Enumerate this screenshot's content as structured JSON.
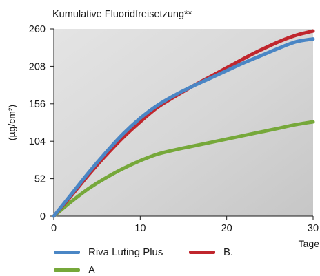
{
  "chart_data": {
    "type": "line",
    "title": "Kumulative Fluoridfreisetzung**",
    "xlabel": "Tage",
    "ylabel": "(µg/cm²)",
    "xlim": [
      0,
      30
    ],
    "ylim": [
      0,
      260
    ],
    "x_ticks": [
      0,
      10,
      20,
      30
    ],
    "y_ticks": [
      0,
      52,
      104,
      156,
      208,
      260
    ],
    "grid": false,
    "legend_position": "bottom",
    "series": [
      {
        "name": "Riva Luting Plus",
        "color": "#4a86c5",
        "x": [
          0,
          2,
          4,
          6,
          8,
          10,
          12,
          14,
          16,
          18,
          20,
          22,
          24,
          26,
          28,
          30
        ],
        "values": [
          0,
          30,
          60,
          88,
          114,
          136,
          154,
          168,
          180,
          191,
          202,
          213,
          223,
          233,
          242,
          246
        ]
      },
      {
        "name": "B.",
        "color": "#c0262d",
        "x": [
          0,
          2,
          4,
          6,
          8,
          10,
          12,
          14,
          16,
          18,
          20,
          22,
          24,
          26,
          28,
          30
        ],
        "values": [
          0,
          28,
          57,
          84,
          109,
          131,
          151,
          166,
          180,
          193,
          206,
          219,
          231,
          242,
          251,
          257
        ]
      },
      {
        "name": "A",
        "color": "#76a83a",
        "x": [
          0,
          2,
          4,
          6,
          8,
          10,
          12,
          14,
          16,
          18,
          20,
          22,
          24,
          26,
          28,
          30
        ],
        "values": [
          0,
          20,
          38,
          53,
          66,
          77,
          86,
          92,
          97,
          102,
          107,
          112,
          117,
          122,
          127,
          131
        ]
      }
    ]
  }
}
